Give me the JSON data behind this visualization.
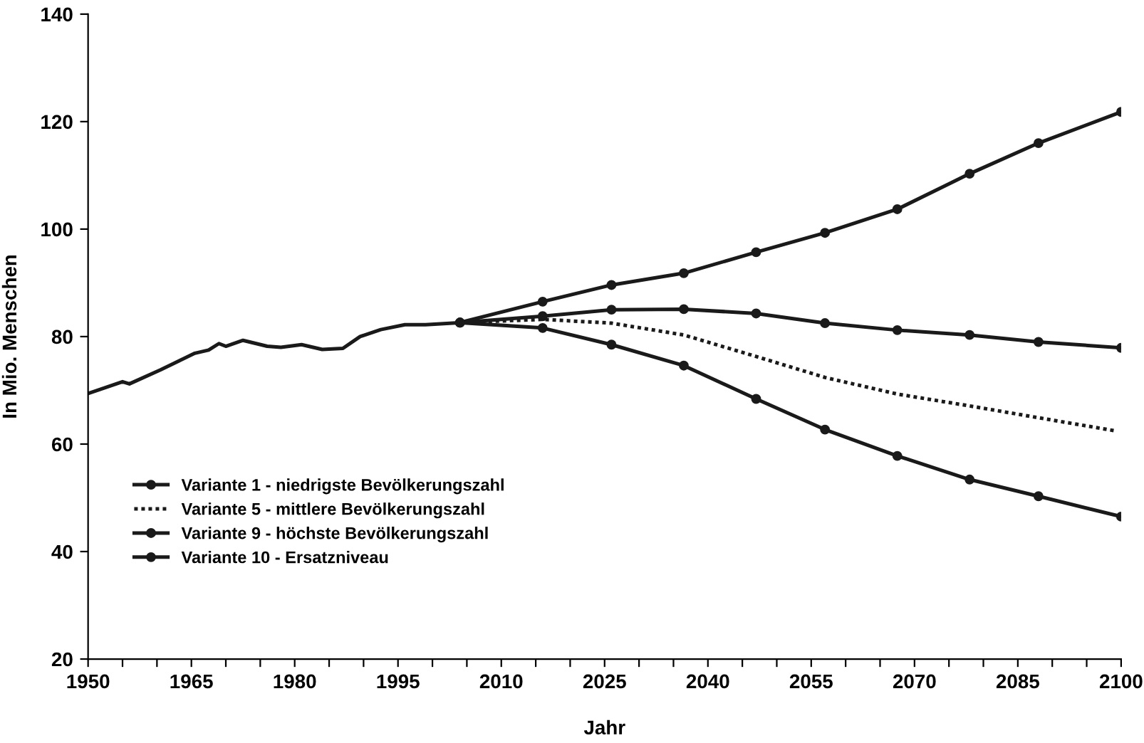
{
  "chart_data": {
    "type": "line",
    "xlabel": "Jahr",
    "ylabel": "In Mio. Menschen",
    "xlim": [
      1950,
      2100
    ],
    "ylim": [
      20,
      140
    ],
    "xticks": [
      1950,
      {
        "value": 1955,
        "label": null
      },
      {
        "value": 1960,
        "label": null
      },
      1965,
      {
        "value": 1970,
        "label": null
      },
      {
        "value": 1975,
        "label": null
      },
      1980,
      {
        "value": 1985,
        "label": null
      },
      {
        "value": 1990,
        "label": null
      },
      1995,
      {
        "value": 2000,
        "label": null
      },
      {
        "value": 2005,
        "label": null
      },
      2010,
      {
        "value": 2015,
        "label": null
      },
      {
        "value": 2020,
        "label": null
      },
      2025,
      {
        "value": 2030,
        "label": null
      },
      {
        "value": 2035,
        "label": null
      },
      2040,
      {
        "value": 2045,
        "label": null
      },
      {
        "value": 2050,
        "label": null
      },
      2055,
      {
        "value": 2060,
        "label": null
      },
      {
        "value": 2065,
        "label": null
      },
      2070,
      {
        "value": 2075,
        "label": null
      },
      {
        "value": 2080,
        "label": null
      },
      2085,
      {
        "value": 2090,
        "label": null
      },
      {
        "value": 2095,
        "label": null
      },
      2100
    ],
    "yticks": [
      20,
      40,
      60,
      80,
      100,
      120,
      140
    ],
    "grid": false,
    "legend": "bottom left",
    "series": [
      {
        "color": "#1a1a1a",
        "marker": "none",
        "line_style": "solid",
        "x": [
          1950,
          1955,
          1956,
          1960.5,
          1965.5,
          1967.5,
          1969,
          1970,
          1972.5,
          1976,
          1978,
          1981,
          1984,
          1987,
          1989.5,
          1992.5,
          1996,
          1999,
          2004
        ],
        "values": [
          69.4,
          71.6,
          71.2,
          73.8,
          76.9,
          77.5,
          78.7,
          78.2,
          79.3,
          78.2,
          78.0,
          78.5,
          77.6,
          77.8,
          80.0,
          81.3,
          82.2,
          82.2,
          82.6
        ]
      },
      {
        "name": "Variante 1 - niedrigste Bevölkerungszahl",
        "color": "#1a1a1a",
        "marker": "circle",
        "line_style": "solid",
        "x": [
          2004,
          2016,
          2026,
          2036.5,
          2047,
          2057,
          2067.5,
          2078,
          2088,
          2100
        ],
        "values": [
          82.6,
          81.6,
          78.5,
          74.6,
          68.4,
          62.7,
          57.8,
          53.4,
          50.3,
          46.5
        ]
      },
      {
        "name": "Variante 5 - mittlere Bevölkerungszahl",
        "color": "#1a1a1a",
        "marker": "none",
        "line_style": "dotted",
        "x": [
          2004,
          2016,
          2026,
          2036.5,
          2047,
          2057,
          2067.5,
          2078,
          2088,
          2099
        ],
        "values": [
          82.6,
          83.2,
          82.5,
          80.3,
          76.3,
          72.4,
          69.3,
          67.1,
          64.9,
          62.5
        ]
      },
      {
        "name": "Variante 9 - höchste Bevölkerungszahl",
        "color": "#1a1a1a",
        "marker": "circle",
        "line_style": "solid",
        "x": [
          2004,
          2016,
          2026,
          2036.5,
          2047,
          2057,
          2067.5,
          2078,
          2088,
          2100
        ],
        "values": [
          82.6,
          86.5,
          89.6,
          91.8,
          95.7,
          99.3,
          103.7,
          110.3,
          116.0,
          121.8
        ]
      },
      {
        "name": "Variante 10 - Ersatzniveau",
        "color": "#1a1a1a",
        "marker": "circle",
        "line_style": "solid",
        "x": [
          2004,
          2016,
          2026,
          2036.5,
          2047,
          2057,
          2067.5,
          2078,
          2088,
          2100
        ],
        "values": [
          82.6,
          83.8,
          85.0,
          85.1,
          84.3,
          82.5,
          81.2,
          80.3,
          79.0,
          77.9
        ]
      }
    ]
  }
}
